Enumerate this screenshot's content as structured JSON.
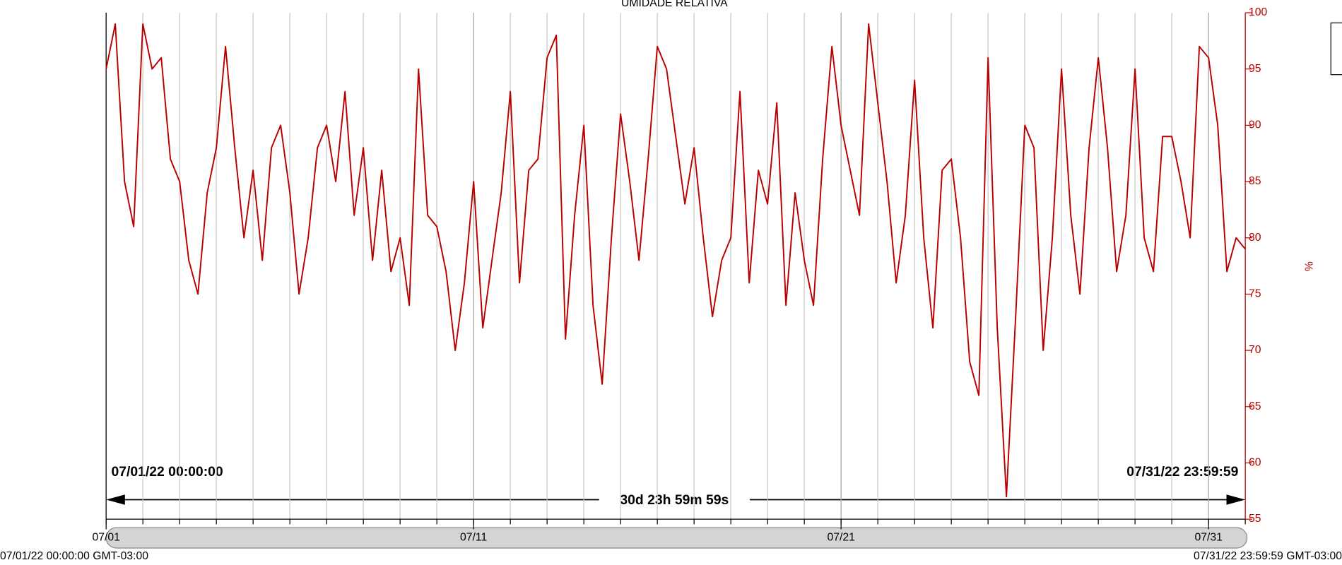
{
  "chart_data": {
    "type": "line",
    "title": "UMIDADE RELATIVA",
    "y_label": "%",
    "y_axis_side": "right",
    "color": "#b80000",
    "start_label": "07/01/22 00:00:00",
    "end_label": "07/31/22 23:59:59",
    "duration_label": "30d 23h 59m 59s",
    "footer_left": "07/01/22 00:00:00 GMT-03:00",
    "footer_right": "07/31/22 23:59:59 GMT-03:00",
    "xlim": [
      0,
      31
    ],
    "xticks": [
      {
        "value": 0,
        "label": "07/01"
      },
      {
        "value": 10,
        "label": "07/11"
      },
      {
        "value": 20,
        "label": "07/21"
      },
      {
        "value": 30,
        "label": "07/31"
      }
    ],
    "xminor_ticks": [
      0,
      1,
      2,
      3,
      4,
      5,
      6,
      7,
      8,
      9,
      10,
      11,
      12,
      13,
      14,
      15,
      16,
      17,
      18,
      19,
      20,
      21,
      22,
      23,
      24,
      25,
      26,
      27,
      28,
      29,
      30,
      31
    ],
    "ylim": [
      55,
      100
    ],
    "yticks": [
      55,
      60,
      65,
      70,
      75,
      80,
      85,
      90,
      95,
      100
    ],
    "x": [
      0,
      0.25,
      0.5,
      0.75,
      1,
      1.25,
      1.5,
      1.75,
      2,
      2.25,
      2.5,
      2.75,
      3,
      3.25,
      3.5,
      3.75,
      4,
      4.25,
      4.5,
      4.75,
      5,
      5.25,
      5.5,
      5.75,
      6,
      6.25,
      6.5,
      6.75,
      7,
      7.25,
      7.5,
      7.75,
      8,
      8.25,
      8.5,
      8.75,
      9,
      9.25,
      9.5,
      9.75,
      10,
      10.25,
      10.5,
      10.75,
      11,
      11.25,
      11.5,
      11.75,
      12,
      12.25,
      12.5,
      12.75,
      13,
      13.25,
      13.5,
      13.75,
      14,
      14.25,
      14.5,
      14.75,
      15,
      15.25,
      15.5,
      15.75,
      16,
      16.25,
      16.5,
      16.75,
      17,
      17.25,
      17.5,
      17.75,
      18,
      18.25,
      18.5,
      18.75,
      19,
      19.25,
      19.5,
      19.75,
      20,
      20.25,
      20.5,
      20.75,
      21,
      21.25,
      21.5,
      21.75,
      22,
      22.25,
      22.5,
      22.75,
      23,
      23.25,
      23.5,
      23.75,
      24,
      24.25,
      24.5,
      24.75,
      25,
      25.25,
      25.5,
      25.75,
      26,
      26.25,
      26.5,
      26.75,
      27,
      27.25,
      27.5,
      27.75,
      28,
      28.25,
      28.5,
      28.75,
      29,
      29.25,
      29.5,
      29.75,
      30,
      30.25,
      30.5,
      30.75,
      31
    ],
    "values": [
      95,
      99,
      85,
      81,
      99,
      95,
      96,
      87,
      85,
      78,
      75,
      84,
      88,
      97,
      88,
      80,
      86,
      78,
      88,
      90,
      84,
      75,
      80,
      88,
      90,
      85,
      93,
      82,
      88,
      78,
      86,
      77,
      80,
      74,
      95,
      82,
      81,
      77,
      70,
      76,
      85,
      72,
      78,
      84,
      93,
      76,
      86,
      87,
      96,
      98,
      71,
      82,
      90,
      74,
      67,
      80,
      91,
      85,
      78,
      87,
      97,
      95,
      89,
      83,
      88,
      80,
      73,
      78,
      80,
      93,
      76,
      86,
      83,
      92,
      74,
      84,
      78,
      74,
      87,
      97,
      90,
      86,
      82,
      99,
      92,
      85,
      76,
      82,
      94,
      80,
      72,
      86,
      87,
      80,
      69,
      66,
      96,
      72,
      57,
      73,
      90,
      88,
      70,
      80,
      95,
      82,
      75,
      88,
      96,
      88,
      77,
      82,
      95,
      80,
      77,
      89,
      89,
      85,
      80,
      97,
      96,
      90,
      77,
      80,
      79
    ]
  }
}
